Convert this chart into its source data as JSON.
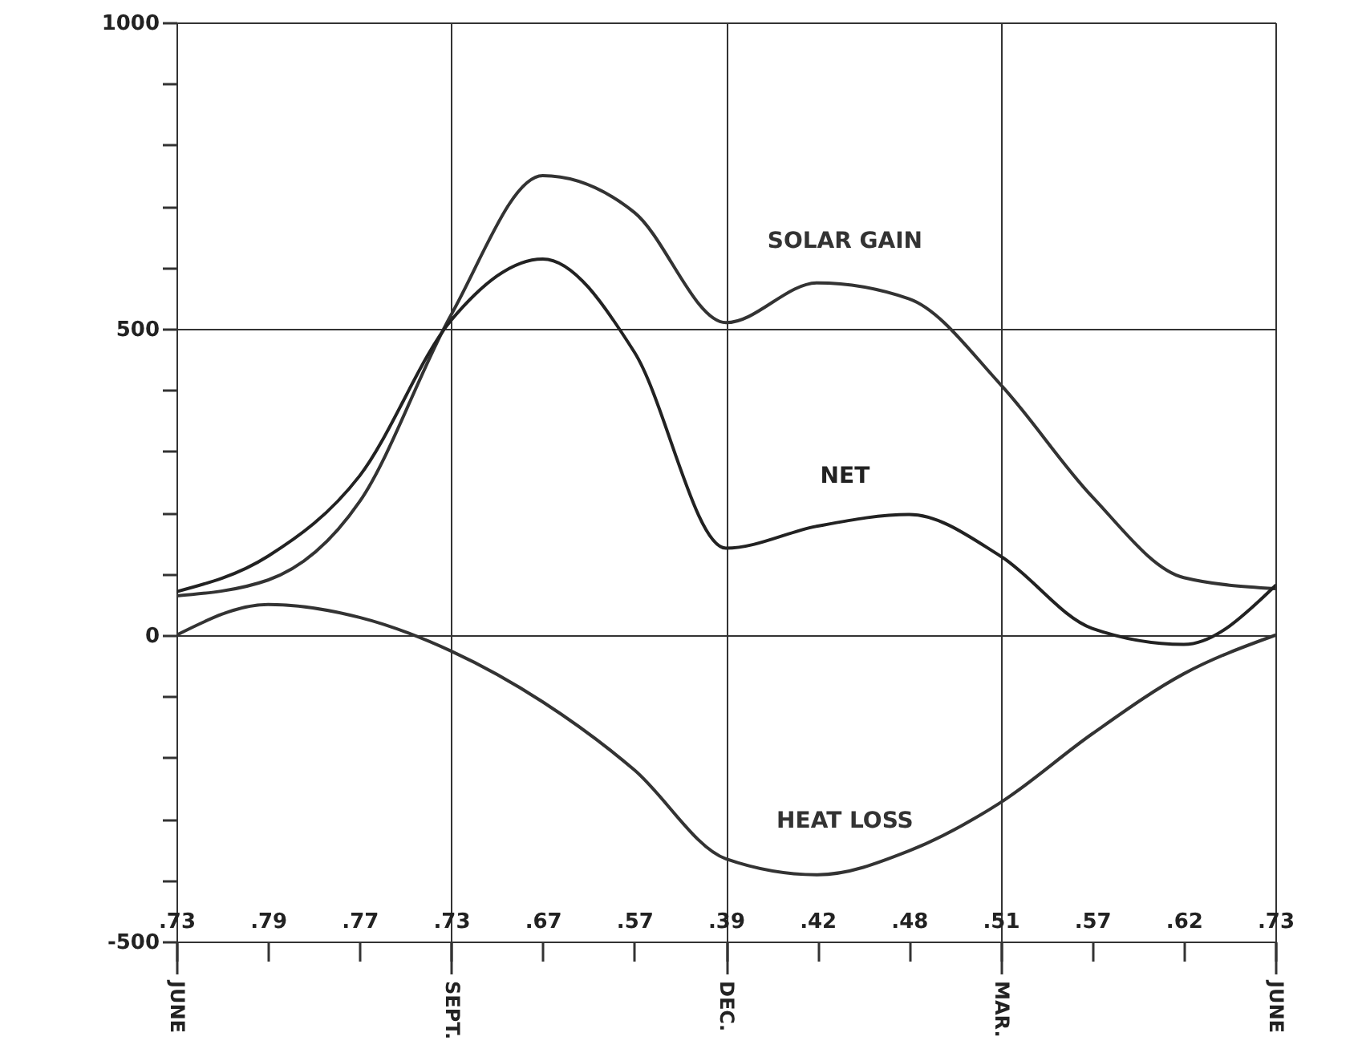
{
  "chart_data": {
    "type": "line",
    "ylim": [
      -500,
      1000
    ],
    "categories": [
      ".73",
      ".79",
      ".77",
      ".73",
      ".67",
      ".57",
      ".39",
      ".42",
      ".48",
      ".51",
      ".57",
      ".62",
      ".73"
    ],
    "annotations": [
      "JUNE",
      "SEPT.",
      "DEC.",
      "MAR.",
      "JUNE"
    ],
    "yticks": [
      -500,
      {
        "value": -400,
        "label": null
      },
      {
        "value": -300,
        "label": null
      },
      {
        "value": -200,
        "label": null
      },
      {
        "value": -100,
        "label": null
      },
      0,
      {
        "value": 100,
        "label": null
      },
      {
        "value": 200,
        "label": null
      },
      {
        "value": 300,
        "label": null
      },
      {
        "value": 400,
        "label": null
      },
      500,
      {
        "value": 600,
        "label": null
      },
      {
        "value": 700,
        "label": null
      },
      {
        "value": 800,
        "label": null
      },
      {
        "value": 900,
        "label": null
      },
      1000
    ],
    "grid": true,
    "series": [
      {
        "name": "SOLAR GAIN",
        "color": "#333333",
        "values": [
          64,
          90,
          218,
          523,
          750,
          690,
          510,
          575,
          549,
          409,
          226,
          94,
          76
        ]
      },
      {
        "name": "NET",
        "color": "#222222",
        "values": [
          71,
          129,
          260,
          514,
          614,
          462,
          142,
          178,
          197,
          129,
          11,
          -15,
          81
        ]
      },
      {
        "name": "HEAT LOSS",
        "color": "#333333",
        "values": [
          0,
          50,
          29,
          -26,
          -109,
          -220,
          -365,
          -391,
          -352,
          -273,
          -161,
          -63,
          0
        ]
      }
    ]
  }
}
